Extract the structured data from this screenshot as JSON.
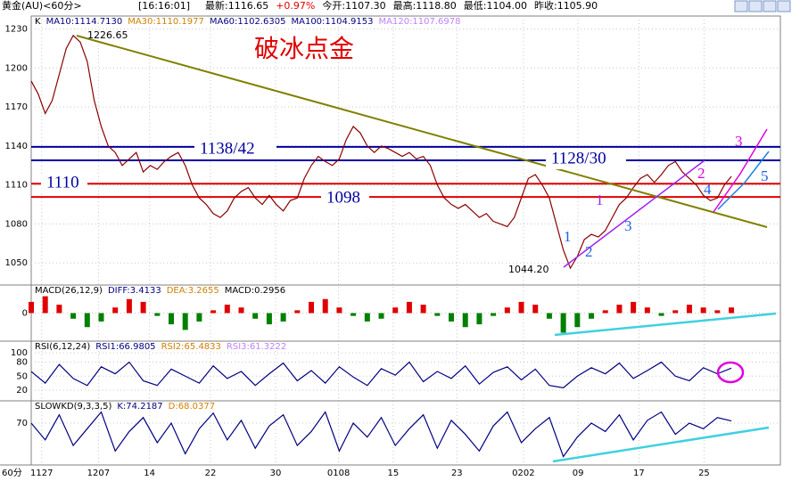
{
  "header": {
    "title": "黄金(AU)<60分>",
    "time": "[16:16:01]",
    "fields": [
      "最新:1116.65",
      "+0.97%",
      "今开:1107.30",
      "最高:1118.80",
      "最低:1104.00",
      "昨收:1105.90"
    ]
  },
  "chart_data": [
    {
      "type": "line",
      "title": "破冰点金",
      "legend": [
        {
          "text": "K",
          "color": "#000000"
        },
        {
          "text": "MA10:1114.7130",
          "color": "#000080"
        },
        {
          "text": "MA30:1110.1977",
          "color": "#d08000"
        },
        {
          "text": "MA60:1102.6305",
          "color": "#000080"
        },
        {
          "text": "MA100:1104.9153",
          "color": "#000080"
        },
        {
          "text": "MA120:1107.6978",
          "color": "#c080ff"
        }
      ],
      "values": [
        1190,
        1180,
        1165,
        1175,
        1195,
        1215,
        1225,
        1220,
        1205,
        1175,
        1155,
        1140,
        1135,
        1125,
        1130,
        1135,
        1120,
        1125,
        1122,
        1128,
        1132,
        1135,
        1125,
        1110,
        1100,
        1095,
        1088,
        1085,
        1090,
        1100,
        1105,
        1108,
        1100,
        1095,
        1102,
        1095,
        1090,
        1098,
        1100,
        1115,
        1125,
        1132,
        1128,
        1125,
        1130,
        1145,
        1155,
        1150,
        1140,
        1135,
        1140,
        1138,
        1135,
        1132,
        1135,
        1130,
        1132,
        1125,
        1110,
        1100,
        1095,
        1092,
        1095,
        1090,
        1085,
        1088,
        1082,
        1080,
        1078,
        1085,
        1100,
        1115,
        1118,
        1110,
        1100,
        1080,
        1060,
        1046,
        1055,
        1068,
        1072,
        1070,
        1075,
        1085,
        1095,
        1100,
        1108,
        1115,
        1118,
        1112,
        1118,
        1125,
        1128,
        1120,
        1115,
        1110,
        1102,
        1098,
        1100,
        1110,
        1116.65
      ],
      "color": "#8b0000",
      "xlim": [
        0,
        107
      ],
      "ylim": [
        1033,
        1240
      ],
      "yticks": [
        1050,
        1080,
        1110,
        1140,
        1170,
        1200,
        1230
      ],
      "xlabel": "60分",
      "xticks": [
        {
          "value": 1.5,
          "label": "1127"
        },
        {
          "value": 9.6,
          "label": "1207"
        },
        {
          "value": 16.9,
          "label": "14"
        },
        {
          "value": 25.6,
          "label": "22"
        },
        {
          "value": 34.9,
          "label": "30"
        },
        {
          "value": 43.9,
          "label": "0108"
        },
        {
          "value": 51.7,
          "label": "15"
        },
        {
          "value": 60.8,
          "label": "23"
        },
        {
          "value": 70.3,
          "label": "0202"
        },
        {
          "value": 78.1,
          "label": "09"
        },
        {
          "value": 86.8,
          "label": "17"
        },
        {
          "value": 96.1,
          "label": "25"
        }
      ],
      "grid": true,
      "levels": [
        {
          "value": 1139.3,
          "color": "#0000a0"
        },
        {
          "value": 1129,
          "color": "#0000a0"
        },
        {
          "value": 1111,
          "color": "#e00000"
        },
        {
          "value": 1100.8,
          "color": "#e00000"
        }
      ],
      "annotations": [
        "1226.65",
        "1044.20",
        "1138/42",
        "1128/30",
        "1110",
        "1098",
        "1",
        "1",
        "2",
        "3",
        "2",
        "4",
        "3",
        "5"
      ]
    },
    {
      "type": "bar",
      "legend": [
        {
          "text": "MACD(26,12,9)",
          "color": "#000000"
        },
        {
          "text": "DIFF:3.4133",
          "color": "#000080"
        },
        {
          "text": "DEA:3.2655",
          "color": "#d08000"
        },
        {
          "text": "MACD:0.2956",
          "color": "#000000"
        }
      ],
      "values": [
        4,
        6,
        3,
        -2,
        -5,
        -3,
        2,
        5,
        4,
        -1,
        -4,
        -6,
        -3,
        1,
        3,
        2,
        -2,
        -4,
        -3,
        1,
        4,
        5,
        2,
        -1,
        -3,
        -2,
        2,
        4,
        3,
        -1,
        -3,
        -5,
        -4,
        -1,
        2,
        4,
        3,
        -2,
        -7,
        -5,
        -2,
        1,
        3,
        4,
        2,
        -1,
        1,
        3,
        2,
        1,
        2
      ],
      "colors": {
        "up": "#e00000",
        "down": "#008000"
      },
      "xlim": [
        0,
        53.5
      ],
      "ylim": [
        -10,
        10
      ],
      "yticks": [
        0
      ]
    },
    {
      "type": "line",
      "legend": [
        {
          "text": "RSI(6,12,24)",
          "color": "#000000"
        },
        {
          "text": "RSI1:66.9805",
          "color": "#000080"
        },
        {
          "text": "RSI2:65.4833",
          "color": "#d08000"
        },
        {
          "text": "RSI3:61.3222",
          "color": "#c080ff"
        }
      ],
      "values": [
        60,
        35,
        75,
        45,
        30,
        70,
        55,
        80,
        40,
        30,
        65,
        50,
        35,
        72,
        45,
        60,
        30,
        55,
        78,
        40,
        62,
        35,
        70,
        48,
        30,
        66,
        52,
        80,
        38,
        60,
        45,
        72,
        33,
        58,
        70,
        42,
        65,
        30,
        25,
        50,
        68,
        55,
        78,
        45,
        62,
        80,
        50,
        40,
        68,
        55,
        67
      ],
      "color": "#000080",
      "xlim": [
        0,
        53.5
      ],
      "ylim": [
        -3,
        125
      ],
      "yticks": [
        20,
        50,
        80,
        100
      ]
    },
    {
      "type": "line",
      "legend": [
        {
          "text": "SLOWKD(9,3,3,5)",
          "color": "#000000"
        },
        {
          "text": "K:74.2187",
          "color": "#000080"
        },
        {
          "text": "D:68.0377",
          "color": "#d08000"
        }
      ],
      "values": [
        70,
        40,
        85,
        30,
        60,
        90,
        20,
        55,
        80,
        35,
        70,
        15,
        60,
        88,
        40,
        75,
        25,
        65,
        85,
        30,
        55,
        90,
        20,
        70,
        45,
        80,
        30,
        60,
        85,
        25,
        75,
        50,
        20,
        65,
        90,
        35,
        60,
        80,
        10,
        45,
        70,
        55,
        85,
        40,
        75,
        90,
        50,
        70,
        60,
        80,
        74
      ],
      "color": "#000080",
      "xlim": [
        0,
        53.5
      ],
      "ylim": [
        -5,
        110
      ],
      "yticks": [
        70
      ]
    }
  ]
}
